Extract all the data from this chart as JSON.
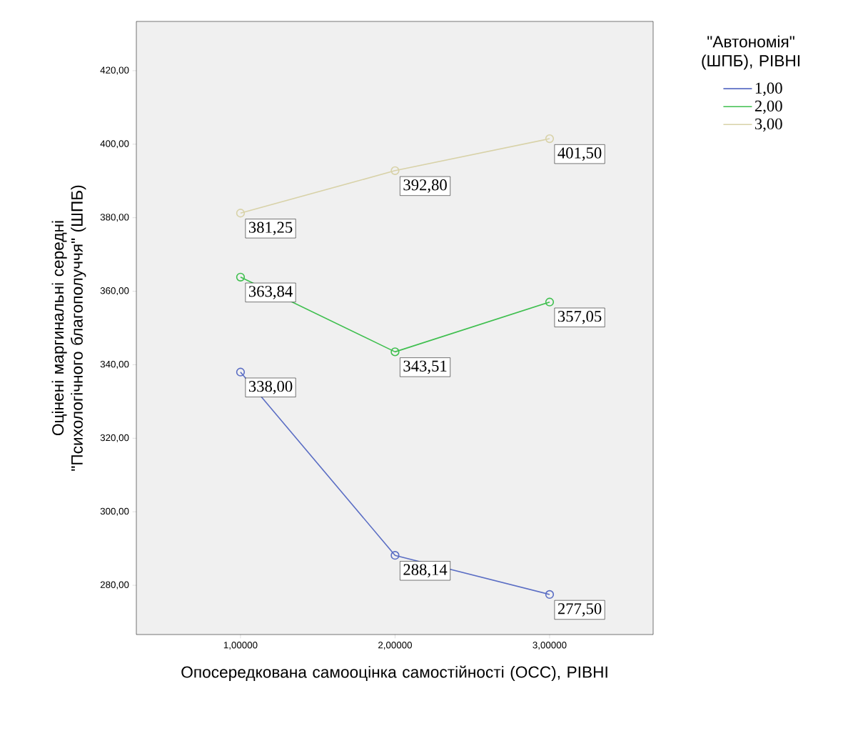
{
  "chart_data": {
    "type": "line",
    "xlabel": "Опосередкована самооцінка самостійності (ОСС), РІВНІ",
    "ylabel": "Оцінені маргинальні середні \"Психологічного благополуччя\" (ШПБ)",
    "legend_title": "\"Автономія\" (ШПБ), РІВНІ",
    "categories": [
      "1,00000",
      "2,00000",
      "3,00000"
    ],
    "ylim": [
      266.6,
      433.4
    ],
    "yticks": [
      {
        "value": 280,
        "label": "280,00"
      },
      {
        "value": 300,
        "label": "300,00"
      },
      {
        "value": 320,
        "label": "320,00"
      },
      {
        "value": 340,
        "label": "340,00"
      },
      {
        "value": 360,
        "label": "360,00"
      },
      {
        "value": 380,
        "label": "380,00"
      },
      {
        "value": 400,
        "label": "400,00"
      },
      {
        "value": 420,
        "label": "420,00"
      }
    ],
    "series": [
      {
        "name": "1,00",
        "color": "#5b6ec4",
        "values": [
          338.0,
          288.14,
          277.5
        ],
        "value_labels": [
          "338,00",
          "288,14",
          "277,50"
        ]
      },
      {
        "name": "2,00",
        "color": "#3fbf4f",
        "values": [
          363.84,
          343.51,
          357.05
        ],
        "value_labels": [
          "363,84",
          "343,51",
          "357,05"
        ]
      },
      {
        "name": "3,00",
        "color": "#d8d2a8",
        "values": [
          381.25,
          392.8,
          401.5
        ],
        "value_labels": [
          "381,25",
          "392,80",
          "401,50"
        ]
      }
    ],
    "marker": "circle",
    "line_style": "solid",
    "grid": false,
    "legend": "top right"
  }
}
